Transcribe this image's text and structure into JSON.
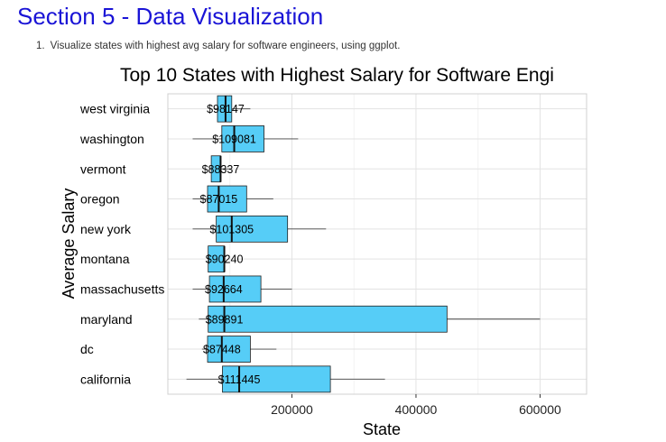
{
  "page": {
    "section_heading": "Section 5 - Data Visualization",
    "task_number": "1.",
    "task_text": "Visualize states with highest avg salary for software engineers, using ggplot."
  },
  "colors": {
    "heading": "#1a14d6",
    "box_fill": "#56cdf7",
    "box_stroke": "#1f1f1f",
    "grid_major": "#e3e3e3",
    "grid_minor": "#f2f2f2",
    "panel_border": "#d0d0d0"
  },
  "chart_data": {
    "type": "boxplot",
    "orientation": "horizontal",
    "title": "Top 10 States with Highest Salary for Software Engi",
    "xlabel": "State",
    "ylabel": "Average Salary",
    "xlim": [
      0,
      675000
    ],
    "x_ticks": [
      200000,
      400000,
      600000
    ],
    "x_tick_labels": [
      "200000",
      "400000",
      "600000"
    ],
    "grid": true,
    "legend": "none",
    "categories": [
      "west virginia",
      "washington",
      "vermont",
      "oregon",
      "new york",
      "montana",
      "massachusetts",
      "maryland",
      "dc",
      "california"
    ],
    "boxes": [
      {
        "state": "west virginia",
        "whisker_low": 75000,
        "q1": 80000,
        "median": 93000,
        "q3": 103000,
        "whisker_high": 133000,
        "label": "$98147"
      },
      {
        "state": "washington",
        "whisker_low": 40000,
        "q1": 87000,
        "median": 107000,
        "q3": 155000,
        "whisker_high": 210000,
        "label": "$109081"
      },
      {
        "state": "vermont",
        "whisker_low": 70000,
        "q1": 70000,
        "median": 85000,
        "q3": 85000,
        "whisker_high": 100000,
        "label": "$88337"
      },
      {
        "state": "oregon",
        "whisker_low": 40000,
        "q1": 64000,
        "median": 82000,
        "q3": 127000,
        "whisker_high": 170000,
        "label": "$87015"
      },
      {
        "state": "new york",
        "whisker_low": 40000,
        "q1": 78000,
        "median": 103000,
        "q3": 193000,
        "whisker_high": 255000,
        "label": "$101305"
      },
      {
        "state": "montana",
        "whisker_low": 65000,
        "q1": 65000,
        "median": 91000,
        "q3": 91000,
        "whisker_high": 91000,
        "label": "$90240"
      },
      {
        "state": "massachusetts",
        "whisker_low": 40000,
        "q1": 67000,
        "median": 90000,
        "q3": 150000,
        "whisker_high": 200000,
        "label": "$92664"
      },
      {
        "state": "maryland",
        "whisker_low": 50000,
        "q1": 65000,
        "median": 91000,
        "q3": 450000,
        "whisker_high": 600000,
        "label": "$89891"
      },
      {
        "state": "dc",
        "whisker_low": 55000,
        "q1": 64000,
        "median": 87000,
        "q3": 133000,
        "whisker_high": 175000,
        "label": "$87448"
      },
      {
        "state": "california",
        "whisker_low": 30000,
        "q1": 88000,
        "median": 115000,
        "q3": 262000,
        "whisker_high": 350000,
        "label": "$111445"
      }
    ]
  }
}
